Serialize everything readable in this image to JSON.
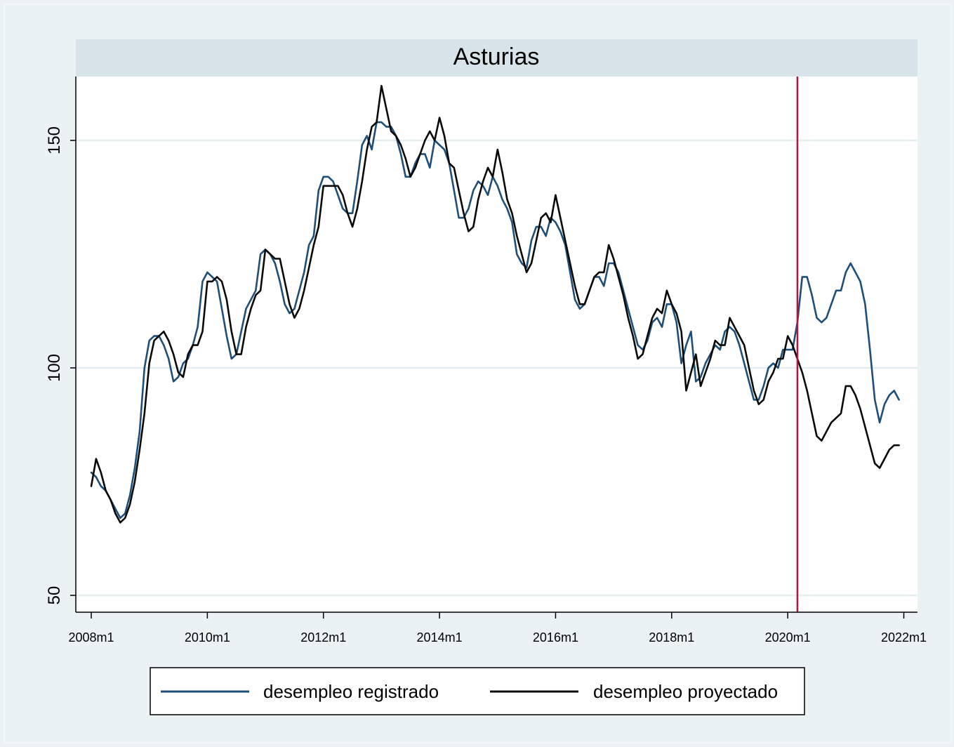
{
  "chart_data": {
    "type": "line",
    "title": "Asturias",
    "xlabel": "",
    "ylabel": "",
    "x_ticks": [
      "2008m1",
      "2010m1",
      "2012m1",
      "2014m1",
      "2016m1",
      "2018m1",
      "2020m1",
      "2022m1"
    ],
    "y_ticks": [
      50,
      100,
      150
    ],
    "xlim": [
      0,
      167
    ],
    "ylim": [
      46.5,
      164.5
    ],
    "grid": true,
    "legend_position": "bottom",
    "vline": {
      "x": 146,
      "color": "#b0173a"
    },
    "series": [
      {
        "name": "desempleo registrado",
        "color": "#1f4e79",
        "values": [
          77,
          76,
          74,
          73,
          71,
          69,
          67,
          68,
          72,
          78,
          86,
          100,
          106,
          107,
          107,
          105,
          102,
          97,
          98,
          101,
          102,
          105,
          109,
          119,
          121,
          120,
          119,
          113,
          107,
          102,
          103,
          108,
          113,
          115,
          117,
          125,
          126,
          125,
          123,
          119,
          114,
          112,
          113,
          117,
          121,
          127,
          129,
          139,
          142,
          142,
          141,
          138,
          135,
          134,
          134,
          141,
          149,
          151,
          148,
          154,
          154,
          153,
          153,
          151,
          147,
          142,
          142,
          145,
          147,
          147,
          144,
          150,
          149,
          148,
          145,
          139,
          133,
          133,
          135,
          139,
          141,
          140,
          138,
          142,
          140,
          137,
          135,
          132,
          125,
          123,
          122,
          128,
          131,
          131,
          129,
          133,
          132,
          130,
          127,
          121,
          115,
          113,
          114,
          117,
          120,
          120,
          118,
          123,
          123,
          121,
          117,
          113,
          109,
          105,
          104,
          106,
          110,
          111,
          109,
          114,
          114,
          110,
          101,
          105,
          108,
          97,
          98,
          101,
          103,
          105,
          104,
          108,
          109,
          108,
          105,
          101,
          97,
          93,
          93,
          96,
          100,
          101,
          100,
          104,
          104,
          104,
          110,
          120,
          120,
          116,
          111,
          110,
          111,
          114,
          117,
          117,
          121,
          123,
          121,
          119,
          114,
          104,
          93,
          88,
          92,
          94,
          95,
          93
        ]
      },
      {
        "name": "desempleo proyectado",
        "color": "#0a0a0a",
        "values": [
          74,
          80,
          77,
          73,
          71,
          68,
          66,
          67,
          70,
          75,
          82,
          90,
          101,
          106,
          107,
          108,
          106,
          103,
          99,
          98,
          103,
          105,
          105,
          108,
          119,
          119,
          120,
          119,
          115,
          108,
          103,
          103,
          109,
          113,
          116,
          117,
          126,
          125,
          124,
          124,
          119,
          114,
          111,
          113,
          117,
          122,
          127,
          131,
          140,
          140,
          140,
          140,
          138,
          134,
          131,
          135,
          141,
          148,
          153,
          154,
          162,
          157,
          152,
          151,
          149,
          146,
          142,
          144,
          147,
          150,
          152,
          150,
          155,
          151,
          145,
          144,
          139,
          134,
          130,
          131,
          137,
          141,
          144,
          142,
          148,
          143,
          137,
          134,
          129,
          125,
          121,
          123,
          128,
          133,
          134,
          132,
          138,
          133,
          128,
          123,
          118,
          114,
          114,
          117,
          120,
          121,
          121,
          127,
          124,
          120,
          116,
          111,
          107,
          102,
          103,
          107,
          111,
          113,
          112,
          117,
          114,
          112,
          108,
          95,
          99,
          103,
          96,
          99,
          102,
          106,
          105,
          105,
          111,
          109,
          107,
          105,
          100,
          95,
          92,
          93,
          97,
          99,
          102,
          102,
          107,
          105,
          102,
          99,
          95,
          90,
          85,
          84,
          86,
          88,
          89,
          90,
          96,
          96,
          94,
          91,
          87,
          83,
          79,
          78,
          80,
          82,
          83,
          83
        ]
      }
    ]
  }
}
